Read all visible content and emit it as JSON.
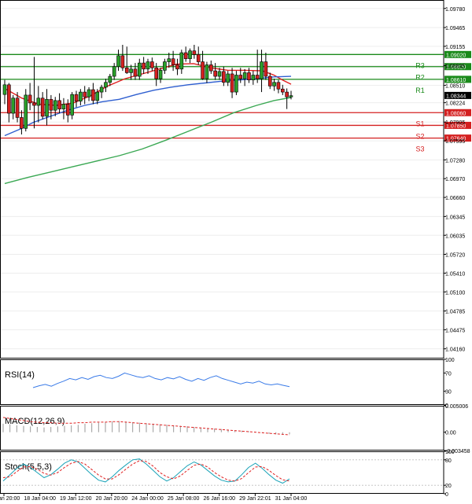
{
  "chart_data": {
    "type": "candlestick",
    "title": "",
    "price_axis": {
      "ticks": [
        "1.09780",
        "1.09465",
        "1.09155",
        "1.08835",
        "1.08510",
        "1.08224",
        "1.07905",
        "1.07595",
        "1.07280",
        "1.06970",
        "1.06660",
        "1.06345",
        "1.06035",
        "1.05720",
        "1.05410",
        "1.05100",
        "1.04785",
        "1.04475",
        "1.04160"
      ],
      "range": [
        1.04,
        1.0992
      ],
      "current_price": "1.08344"
    },
    "time_axis": {
      "labels": [
        "15 Jan 20:00",
        "18 Jan 04:00",
        "19 Jan 12:00",
        "20 Jan 20:00",
        "24 Jan 00:00",
        "25 Jan 08:00",
        "26 Jan 16:00",
        "29 Jan 22:01",
        "31 Jan 04:00"
      ]
    },
    "levels": [
      {
        "name": "R3",
        "value": "1.09020",
        "price": 1.0902,
        "color": "#1a8a1a"
      },
      {
        "name": "R2",
        "value": "1.08820",
        "price": 1.0882,
        "color": "#1a8a1a"
      },
      {
        "name": "R1",
        "value": "1.08610",
        "price": 1.0861,
        "color": "#1a8a1a"
      },
      {
        "name": "S1",
        "value": "1.08060",
        "price": 1.0806,
        "color": "#d42020"
      },
      {
        "name": "S2",
        "value": "1.07850",
        "price": 1.0785,
        "color": "#d42020"
      },
      {
        "name": "S3",
        "value": "1.07640",
        "price": 1.0764,
        "color": "#d42020"
      }
    ],
    "candles": [
      {
        "o": 1.0836,
        "h": 1.086,
        "l": 1.082,
        "c": 1.0852
      },
      {
        "o": 1.0852,
        "h": 1.0855,
        "l": 1.079,
        "c": 1.0805
      },
      {
        "o": 1.0805,
        "h": 1.0835,
        "l": 1.0795,
        "c": 1.083
      },
      {
        "o": 1.083,
        "h": 1.084,
        "l": 1.079,
        "c": 1.0798
      },
      {
        "o": 1.0798,
        "h": 1.081,
        "l": 1.077,
        "c": 1.078
      },
      {
        "o": 1.078,
        "h": 1.0845,
        "l": 1.0775,
        "c": 1.0835
      },
      {
        "o": 1.0835,
        "h": 1.0855,
        "l": 1.081,
        "c": 1.0822
      },
      {
        "o": 1.0822,
        "h": 1.0898,
        "l": 1.078,
        "c": 1.0818
      },
      {
        "o": 1.0818,
        "h": 1.085,
        "l": 1.079,
        "c": 1.083
      },
      {
        "o": 1.083,
        "h": 1.084,
        "l": 1.0795,
        "c": 1.08
      },
      {
        "o": 1.08,
        "h": 1.0845,
        "l": 1.0785,
        "c": 1.0828
      },
      {
        "o": 1.0828,
        "h": 1.0835,
        "l": 1.0795,
        "c": 1.081
      },
      {
        "o": 1.081,
        "h": 1.0832,
        "l": 1.08,
        "c": 1.0826
      },
      {
        "o": 1.0826,
        "h": 1.0838,
        "l": 1.0805,
        "c": 1.0812
      },
      {
        "o": 1.0812,
        "h": 1.083,
        "l": 1.0795,
        "c": 1.082
      },
      {
        "o": 1.082,
        "h": 1.0828,
        "l": 1.079,
        "c": 1.0802
      },
      {
        "o": 1.0802,
        "h": 1.084,
        "l": 1.0795,
        "c": 1.0836
      },
      {
        "o": 1.0836,
        "h": 1.0842,
        "l": 1.0815,
        "c": 1.0825
      },
      {
        "o": 1.0825,
        "h": 1.0845,
        "l": 1.0818,
        "c": 1.084
      },
      {
        "o": 1.084,
        "h": 1.085,
        "l": 1.082,
        "c": 1.0832
      },
      {
        "o": 1.0832,
        "h": 1.0848,
        "l": 1.0825,
        "c": 1.0844
      },
      {
        "o": 1.0844,
        "h": 1.0855,
        "l": 1.082,
        "c": 1.0826
      },
      {
        "o": 1.0826,
        "h": 1.0845,
        "l": 1.082,
        "c": 1.084
      },
      {
        "o": 1.084,
        "h": 1.0852,
        "l": 1.083,
        "c": 1.0848
      },
      {
        "o": 1.0848,
        "h": 1.0862,
        "l": 1.084,
        "c": 1.0856
      },
      {
        "o": 1.0856,
        "h": 1.087,
        "l": 1.085,
        "c": 1.0866
      },
      {
        "o": 1.0866,
        "h": 1.0888,
        "l": 1.086,
        "c": 1.0882
      },
      {
        "o": 1.0882,
        "h": 1.091,
        "l": 1.0875,
        "c": 1.09
      },
      {
        "o": 1.09,
        "h": 1.0918,
        "l": 1.0875,
        "c": 1.088
      },
      {
        "o": 1.088,
        "h": 1.0915,
        "l": 1.087,
        "c": 1.0872
      },
      {
        "o": 1.0872,
        "h": 1.0885,
        "l": 1.086,
        "c": 1.0878
      },
      {
        "o": 1.0878,
        "h": 1.0888,
        "l": 1.086,
        "c": 1.0866
      },
      {
        "o": 1.0866,
        "h": 1.0895,
        "l": 1.086,
        "c": 1.0888
      },
      {
        "o": 1.0888,
        "h": 1.0898,
        "l": 1.087,
        "c": 1.0878
      },
      {
        "o": 1.0878,
        "h": 1.0895,
        "l": 1.087,
        "c": 1.089
      },
      {
        "o": 1.089,
        "h": 1.0897,
        "l": 1.0875,
        "c": 1.088
      },
      {
        "o": 1.088,
        "h": 1.0888,
        "l": 1.085,
        "c": 1.0862
      },
      {
        "o": 1.0862,
        "h": 1.088,
        "l": 1.0855,
        "c": 1.0876
      },
      {
        "o": 1.0876,
        "h": 1.0895,
        "l": 1.087,
        "c": 1.089
      },
      {
        "o": 1.089,
        "h": 1.0905,
        "l": 1.088,
        "c": 1.0895
      },
      {
        "o": 1.0895,
        "h": 1.0908,
        "l": 1.0875,
        "c": 1.0885
      },
      {
        "o": 1.0885,
        "h": 1.0895,
        "l": 1.0868,
        "c": 1.0878
      },
      {
        "o": 1.0878,
        "h": 1.091,
        "l": 1.087,
        "c": 1.0905
      },
      {
        "o": 1.0905,
        "h": 1.0915,
        "l": 1.089,
        "c": 1.0895
      },
      {
        "o": 1.0895,
        "h": 1.0912,
        "l": 1.0888,
        "c": 1.0908
      },
      {
        "o": 1.0908,
        "h": 1.0918,
        "l": 1.0895,
        "c": 1.0902
      },
      {
        "o": 1.0902,
        "h": 1.0915,
        "l": 1.0885,
        "c": 1.089
      },
      {
        "o": 1.089,
        "h": 1.0908,
        "l": 1.086,
        "c": 1.0862
      },
      {
        "o": 1.0862,
        "h": 1.089,
        "l": 1.0855,
        "c": 1.0885
      },
      {
        "o": 1.0885,
        "h": 1.0892,
        "l": 1.087,
        "c": 1.0875
      },
      {
        "o": 1.0875,
        "h": 1.0888,
        "l": 1.086,
        "c": 1.0866
      },
      {
        "o": 1.0866,
        "h": 1.088,
        "l": 1.086,
        "c": 1.0874
      },
      {
        "o": 1.0874,
        "h": 1.0882,
        "l": 1.085,
        "c": 1.0856
      },
      {
        "o": 1.0856,
        "h": 1.0875,
        "l": 1.085,
        "c": 1.087
      },
      {
        "o": 1.087,
        "h": 1.088,
        "l": 1.083,
        "c": 1.084
      },
      {
        "o": 1.084,
        "h": 1.0875,
        "l": 1.0835,
        "c": 1.0868
      },
      {
        "o": 1.0868,
        "h": 1.088,
        "l": 1.0855,
        "c": 1.0862
      },
      {
        "o": 1.0862,
        "h": 1.0878,
        "l": 1.085,
        "c": 1.0872
      },
      {
        "o": 1.0872,
        "h": 1.088,
        "l": 1.0855,
        "c": 1.086
      },
      {
        "o": 1.086,
        "h": 1.0875,
        "l": 1.0852,
        "c": 1.0868
      },
      {
        "o": 1.0868,
        "h": 1.091,
        "l": 1.0855,
        "c": 1.0862
      },
      {
        "o": 1.0862,
        "h": 1.091,
        "l": 1.084,
        "c": 1.089
      },
      {
        "o": 1.089,
        "h": 1.0905,
        "l": 1.086,
        "c": 1.0866
      },
      {
        "o": 1.0866,
        "h": 1.0872,
        "l": 1.0845,
        "c": 1.085
      },
      {
        "o": 1.085,
        "h": 1.0862,
        "l": 1.0842,
        "c": 1.0856
      },
      {
        "o": 1.0856,
        "h": 1.086,
        "l": 1.0838,
        "c": 1.0845
      },
      {
        "o": 1.0845,
        "h": 1.0852,
        "l": 1.0835,
        "c": 1.084
      },
      {
        "o": 1.084,
        "h": 1.0846,
        "l": 1.0812,
        "c": 1.0832
      },
      {
        "o": 1.0832,
        "h": 1.0842,
        "l": 1.0828,
        "c": 1.0834
      }
    ],
    "overlays": [
      {
        "label": "red-ma",
        "color": "#e02020",
        "points": [
          [
            0,
            1.0846
          ],
          [
            0.06,
            1.083
          ],
          [
            0.12,
            1.082
          ],
          [
            0.18,
            1.0818
          ],
          [
            0.24,
            1.0822
          ],
          [
            0.3,
            1.0834
          ],
          [
            0.36,
            1.085
          ],
          [
            0.42,
            1.0862
          ],
          [
            0.48,
            1.087
          ],
          [
            0.54,
            1.0878
          ],
          [
            0.6,
            1.0886
          ],
          [
            0.66,
            1.0887
          ],
          [
            0.72,
            1.088
          ],
          [
            0.78,
            1.0876
          ],
          [
            0.84,
            1.0876
          ],
          [
            0.9,
            1.0875
          ],
          [
            0.94,
            1.0868
          ],
          [
            0.97,
            1.086
          ],
          [
            1,
            1.0853
          ]
        ]
      },
      {
        "label": "blue-ma",
        "color": "#2f5fd0",
        "points": [
          [
            0,
            1.0768
          ],
          [
            0.05,
            1.0778
          ],
          [
            0.1,
            1.079
          ],
          [
            0.16,
            1.08
          ],
          [
            0.22,
            1.081
          ],
          [
            0.28,
            1.0818
          ],
          [
            0.34,
            1.0824
          ],
          [
            0.4,
            1.0828
          ],
          [
            0.46,
            1.0836
          ],
          [
            0.52,
            1.0843
          ],
          [
            0.58,
            1.0848
          ],
          [
            0.64,
            1.0852
          ],
          [
            0.7,
            1.0855
          ],
          [
            0.76,
            1.0858
          ],
          [
            0.82,
            1.086
          ],
          [
            0.88,
            1.0862
          ],
          [
            0.94,
            1.0865
          ],
          [
            1,
            1.0866
          ]
        ]
      },
      {
        "label": "green-ma",
        "color": "#3aa853",
        "points": [
          [
            0,
            1.0689
          ],
          [
            0.08,
            1.0699
          ],
          [
            0.16,
            1.0708
          ],
          [
            0.24,
            1.0717
          ],
          [
            0.32,
            1.0726
          ],
          [
            0.4,
            1.0735
          ],
          [
            0.48,
            1.0746
          ],
          [
            0.56,
            1.076
          ],
          [
            0.64,
            1.0775
          ],
          [
            0.72,
            1.079
          ],
          [
            0.8,
            1.0806
          ],
          [
            0.88,
            1.0818
          ],
          [
            0.94,
            1.0826
          ],
          [
            1,
            1.0831
          ]
        ]
      }
    ],
    "rsi": {
      "label": "RSI(14)",
      "ticks": [
        "100",
        "70",
        "30",
        "0"
      ],
      "range": [
        0,
        100
      ],
      "values": [
        38,
        42,
        45,
        41,
        47,
        52,
        58,
        55,
        60,
        56,
        62,
        65,
        60,
        58,
        63,
        70,
        66,
        62,
        60,
        64,
        58,
        55,
        60,
        57,
        62,
        56,
        52,
        58,
        54,
        60,
        64,
        58,
        54,
        50,
        46,
        50,
        48,
        52,
        46,
        44,
        46,
        43,
        40
      ]
    },
    "macd": {
      "label": "MACD(12,26,9)",
      "ticks": [
        "0.005006",
        "0.00",
        "-0.003458"
      ],
      "range": [
        -0.003458,
        0.005006
      ],
      "histogram": [
        0.0016,
        0.0015,
        0.0013,
        0.0012,
        0.0011,
        0.001,
        0.0009,
        0.001,
        0.0011,
        0.0012,
        0.0013,
        0.0014,
        0.0016,
        0.0017,
        0.0018,
        0.0019,
        0.002,
        0.0021,
        0.002,
        0.0019,
        0.0018,
        0.0017,
        0.0016,
        0.0015,
        0.0014,
        0.0013,
        0.0012,
        0.0011,
        0.001,
        0.0009,
        0.0008,
        0.0007,
        0.0006,
        0.0005,
        0.0004,
        0.0003,
        0.0002,
        0.0001,
        -0.0001,
        -0.0003,
        -0.0004,
        -0.0005,
        -0.0004
      ],
      "signal": [
        0.0028,
        0.0026,
        0.0024,
        0.0022,
        0.002,
        0.0019,
        0.0018,
        0.0018,
        0.0017,
        0.0017,
        0.0017,
        0.0018,
        0.0018,
        0.0019,
        0.0019,
        0.0019,
        0.002,
        0.002,
        0.0019,
        0.0018,
        0.0017,
        0.0016,
        0.0015,
        0.0014,
        0.0013,
        0.0012,
        0.0011,
        0.001,
        0.0009,
        0.0008,
        0.0007,
        0.0006,
        0.0005,
        0.0004,
        0.0003,
        0.0002,
        0.0001,
        0.0,
        -0.0001,
        -0.0002,
        -0.0003,
        -0.0004,
        -0.0005
      ]
    },
    "stoch": {
      "label": "Stoch(5,5,3)",
      "ticks": [
        "100",
        "80",
        "20",
        "0"
      ],
      "range": [
        0,
        100
      ],
      "k": [
        30,
        45,
        60,
        70,
        62,
        50,
        38,
        45,
        58,
        72,
        80,
        75,
        60,
        45,
        32,
        28,
        40,
        55,
        68,
        80,
        82,
        70,
        55,
        40,
        30,
        38,
        52,
        66,
        75,
        68,
        55,
        42,
        32,
        28,
        30,
        45,
        62,
        72,
        60,
        45,
        32,
        25,
        35
      ],
      "d": [
        38,
        40,
        52,
        63,
        64,
        58,
        48,
        44,
        50,
        62,
        72,
        76,
        70,
        57,
        44,
        35,
        35,
        45,
        58,
        70,
        78,
        76,
        65,
        50,
        40,
        35,
        42,
        55,
        67,
        70,
        63,
        50,
        40,
        32,
        30,
        36,
        50,
        63,
        64,
        55,
        43,
        33,
        30
      ]
    }
  }
}
